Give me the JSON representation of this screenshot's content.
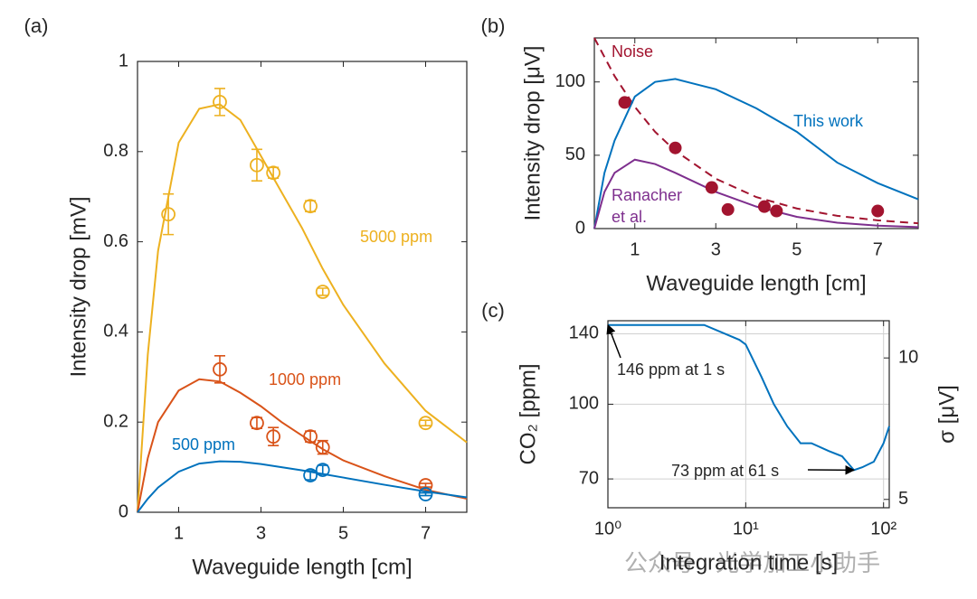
{
  "chart_data": [
    {
      "type": "scatter",
      "label": "(a)",
      "xlabel": "Waveguide length [cm]",
      "ylabel": "Intensity drop [mV]",
      "xlim": [
        0,
        8
      ],
      "xticks": [
        1,
        3,
        5,
        7
      ],
      "ylim": [
        0,
        1
      ],
      "yticks": [
        0,
        0.2,
        0.4,
        0.6,
        0.8,
        1
      ],
      "series": [
        {
          "name": "5000 ppm",
          "color": "#EDB120",
          "x": [
            0.75,
            2,
            2.9,
            3.3,
            4.2,
            4.5,
            7
          ],
          "values": [
            0.661,
            0.91,
            0.77,
            0.753,
            0.679,
            0.489,
            0.198
          ],
          "errors": [
            0.045,
            0.03,
            0.035,
            0.012,
            0.012,
            0.008,
            0.006
          ],
          "fit_x": [
            0,
            0.25,
            0.5,
            1,
            1.5,
            2,
            2.5,
            3,
            3.5,
            4,
            4.5,
            5,
            6,
            7,
            8
          ],
          "fit_values": [
            0,
            0.35,
            0.58,
            0.82,
            0.895,
            0.905,
            0.87,
            0.79,
            0.71,
            0.63,
            0.54,
            0.46,
            0.33,
            0.225,
            0.155
          ]
        },
        {
          "name": "1000 ppm",
          "color": "#D95319",
          "x": [
            2,
            2.9,
            3.3,
            4.2,
            4.5,
            7
          ],
          "values": [
            0.317,
            0.198,
            0.168,
            0.168,
            0.144,
            0.06
          ],
          "errors": [
            0.03,
            0.012,
            0.02,
            0.012,
            0.015,
            0.004
          ],
          "fit_x": [
            0,
            0.25,
            0.5,
            1,
            1.5,
            2,
            2.5,
            3,
            3.5,
            4,
            4.5,
            5,
            6,
            7,
            8
          ],
          "fit_values": [
            0,
            0.12,
            0.2,
            0.27,
            0.295,
            0.29,
            0.265,
            0.235,
            0.2,
            0.17,
            0.14,
            0.115,
            0.08,
            0.05,
            0.03
          ]
        },
        {
          "name": "500 ppm",
          "color": "#0072BD",
          "x": [
            4.2,
            4.5,
            7
          ],
          "values": [
            0.082,
            0.094,
            0.04
          ],
          "errors": [
            0.01,
            0.01,
            0.003
          ],
          "fit_x": [
            0,
            0.25,
            0.5,
            1,
            1.5,
            2,
            2.5,
            3,
            3.5,
            4,
            4.5,
            5,
            6,
            7,
            8
          ],
          "fit_values": [
            0,
            0.03,
            0.055,
            0.09,
            0.108,
            0.113,
            0.112,
            0.107,
            0.1,
            0.093,
            0.085,
            0.077,
            0.061,
            0.046,
            0.033
          ]
        }
      ]
    },
    {
      "type": "line",
      "label": "(b)",
      "xlabel": "Waveguide length [cm]",
      "ylabel": "Intensity drop [μV]",
      "xlim": [
        0,
        8
      ],
      "xticks": [
        1,
        3,
        5,
        7
      ],
      "ylim": [
        0,
        130
      ],
      "yticks": [
        0,
        50,
        100
      ],
      "points": {
        "color": "#A2142F",
        "x": [
          0.75,
          2,
          2.9,
          3.3,
          4.2,
          4.5,
          7
        ],
        "values": [
          86,
          55,
          28,
          13,
          15,
          12,
          12
        ]
      },
      "series": [
        {
          "name": "Noise",
          "color": "#A2142F",
          "dashed": true,
          "x": [
            0,
            0.5,
            1,
            1.5,
            2,
            3,
            4,
            5,
            6,
            7,
            8
          ],
          "values": [
            130,
            104,
            83,
            66,
            53,
            34,
            21.5,
            13.7,
            8.7,
            5.6,
            3.6
          ]
        },
        {
          "name": "This work",
          "color": "#0072BD",
          "dashed": false,
          "x": [
            0,
            0.25,
            0.5,
            1,
            1.5,
            2,
            3,
            4,
            5,
            6,
            7,
            8
          ],
          "values": [
            0,
            38,
            60,
            90,
            100,
            102,
            95,
            82,
            66,
            45,
            31,
            20
          ]
        },
        {
          "name": "Ranacher et al.",
          "color": "#7E2F8E",
          "dashed": false,
          "x": [
            0,
            0.25,
            0.5,
            1,
            1.5,
            2,
            3,
            4,
            5,
            6,
            7,
            8
          ],
          "values": [
            0,
            25,
            38,
            47,
            44,
            38,
            25,
            15,
            8,
            4,
            2,
            1
          ]
        }
      ]
    },
    {
      "type": "line",
      "label": "(c)",
      "xlabel": "Integration time [s]",
      "ylabel": "CO₂ [ppm]",
      "y2label": "σ [μV]",
      "xscale": "log",
      "yscale": "log",
      "grid": true,
      "xlim": [
        1,
        110
      ],
      "xticks": [
        {
          "value": 1,
          "label": "10⁰"
        },
        {
          "value": 10,
          "label": "10¹"
        },
        {
          "value": 100,
          "label": "10²"
        }
      ],
      "ylim": [
        61,
        149
      ],
      "yticks": [
        70,
        100,
        140
      ],
      "y2lim": [
        4.8,
        12
      ],
      "y2ticks": [
        5,
        10
      ],
      "series": [
        {
          "color": "#0072BD",
          "x": [
            1,
            5,
            9,
            10,
            13,
            16,
            20,
            25,
            30,
            40,
            50,
            61,
            70,
            85,
            100,
            110
          ],
          "values": [
            146,
            146,
            136,
            133,
            114,
            100,
            90,
            83,
            83,
            80,
            78,
            73,
            74,
            76,
            83,
            90
          ]
        }
      ],
      "annotations": [
        {
          "text": "146 ppm at 1 s",
          "x": 1,
          "y": 146
        },
        {
          "text": "73 ppm at 61 s",
          "x": 61,
          "y": 73
        }
      ]
    }
  ],
  "watermark": "公众号 · 光学加工小助手"
}
